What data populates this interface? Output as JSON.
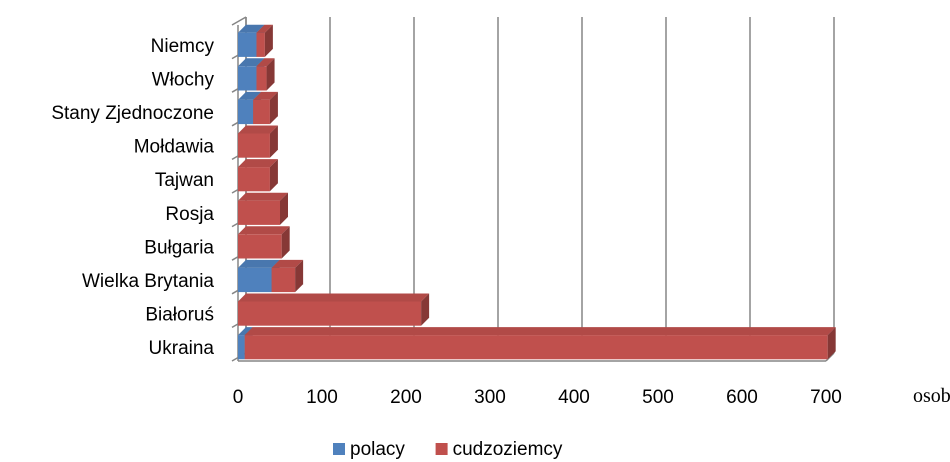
{
  "chart_data": {
    "type": "bar",
    "orientation": "horizontal",
    "stacked": true,
    "style": "3d",
    "categories": [
      "Niemcy",
      "Włochy",
      "Stany Zjednoczone",
      "Mołdawia",
      "Tajwan",
      "Rosja",
      "Bułgaria",
      "Wielka Brytania",
      "Białoruś",
      "Ukraina"
    ],
    "series": [
      {
        "name": "polacy",
        "color": "#4f81bd",
        "values": [
          22,
          22,
          18,
          0,
          0,
          0,
          0,
          40,
          0,
          8
        ]
      },
      {
        "name": "cudzoziemcy",
        "color": "#c0504d",
        "values": [
          10,
          12,
          20,
          38,
          38,
          50,
          52,
          28,
          218,
          694
        ]
      }
    ],
    "x_ticks": [
      "0",
      "100",
      "200",
      "300",
      "400",
      "500",
      "600",
      "700"
    ],
    "xlim": [
      0,
      700
    ],
    "xlabel": "osoby",
    "grid": true,
    "legend_position": "bottom"
  }
}
